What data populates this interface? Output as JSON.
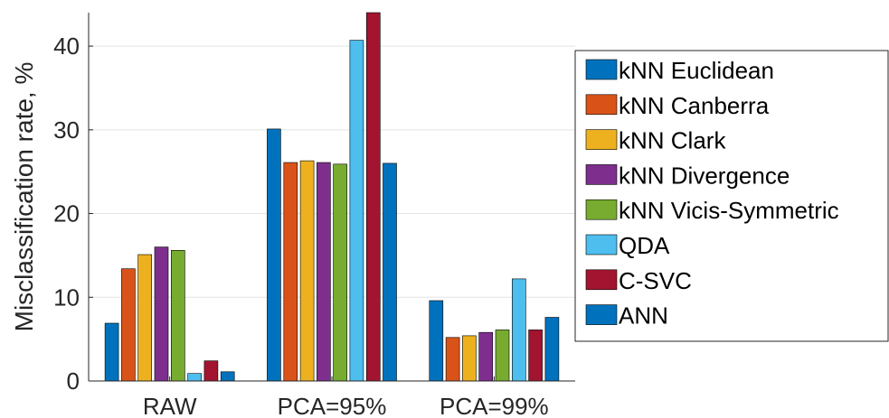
{
  "chart_data": {
    "type": "bar",
    "categories": [
      "RAW",
      "PCA=95%",
      "PCA=99%"
    ],
    "ylabel": "Misclassification rate, %",
    "xlabel": "",
    "ylim": [
      0,
      44
    ],
    "yticks": [
      0,
      10,
      20,
      30,
      40
    ],
    "grid": true,
    "legend_position": "right",
    "series": [
      {
        "name": "kNN Euclidean",
        "color": "#0072BD",
        "values": [
          6.9,
          30.1,
          9.6
        ]
      },
      {
        "name": "kNN Canberra",
        "color": "#D95319",
        "values": [
          13.4,
          26.1,
          5.2
        ]
      },
      {
        "name": "kNN Clark",
        "color": "#EDB120",
        "values": [
          15.1,
          26.3,
          5.4
        ]
      },
      {
        "name": "kNN Divergence",
        "color": "#7E2F8E",
        "values": [
          16.0,
          26.1,
          5.8
        ]
      },
      {
        "name": "kNN Vicis-Symmetric",
        "color": "#77AC30",
        "values": [
          15.6,
          25.9,
          6.1
        ]
      },
      {
        "name": "QDA",
        "color": "#4DBEEE",
        "values": [
          0.9,
          40.7,
          12.2
        ]
      },
      {
        "name": "C-SVC",
        "color": "#A2142F",
        "values": [
          2.4,
          44.0,
          6.1
        ]
      },
      {
        "name": "ANN",
        "color": "#0072BD",
        "values": [
          1.1,
          26.0,
          7.6
        ]
      }
    ]
  }
}
